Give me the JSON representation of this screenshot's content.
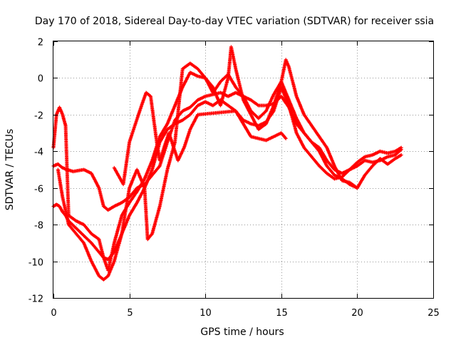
{
  "chart_data": {
    "type": "scatter",
    "title": "Day 170 of 2018, Sidereal Day-to-day VTEC variation (SDTVAR) for receiver ssia",
    "xlabel": "GPS time / hours",
    "ylabel": "SDTVAR / TECUs",
    "xlim": [
      0,
      25
    ],
    "ylim": [
      -12,
      2
    ],
    "xticks": [
      0,
      5,
      10,
      15,
      20,
      25
    ],
    "yticks": [
      -12,
      -10,
      -8,
      -6,
      -4,
      -2,
      0,
      2
    ],
    "xtick_labels": [
      "0",
      "5",
      "10",
      "15",
      "20",
      "25"
    ],
    "ytick_labels": [
      "-12",
      "-10",
      "-8",
      "-6",
      "-4",
      "-2",
      "0",
      "2"
    ],
    "grid": true,
    "grid_style": "dotted",
    "marker": "+",
    "color": "#ff0000",
    "series": [
      {
        "x": [
          0.0,
          0.3,
          0.6,
          0.9,
          1.3,
          2.0,
          2.5,
          3.0,
          3.3,
          3.6,
          4.0,
          4.5,
          5.0,
          5.5,
          6.0,
          6.5,
          7.0,
          7.5,
          8.0,
          8.5,
          9.0,
          9.5,
          10.0,
          10.5,
          11.0,
          11.5,
          12.0,
          12.5,
          13.0,
          13.5,
          14.0,
          14.5,
          15.0,
          15.5,
          16.0,
          16.5,
          17.0,
          17.5,
          18.0,
          18.5,
          19.0,
          19.5,
          20.0,
          20.5,
          21.0,
          21.5,
          22.0,
          22.5,
          22.9
        ],
        "y": [
          -4.8,
          -4.7,
          -4.9,
          -5.0,
          -5.1,
          -5.0,
          -5.2,
          -6.0,
          -7.0,
          -7.2,
          -7.0,
          -6.8,
          -6.5,
          -6.0,
          -5.8,
          -5.3,
          -4.8,
          -3.5,
          -2.3,
          -1.8,
          -1.6,
          -1.2,
          -1.0,
          -0.9,
          -0.8,
          -1.0,
          -0.8,
          -1.0,
          -1.2,
          -1.5,
          -1.5,
          -1.4,
          -1.0,
          -1.6,
          -2.5,
          -3.0,
          -3.5,
          -3.8,
          -4.5,
          -5.0,
          -5.2,
          -5.0,
          -4.8,
          -4.5,
          -4.6,
          -4.5,
          -4.3,
          -4.2,
          -3.9
        ]
      },
      {
        "x": [
          0.0,
          0.2,
          0.4,
          0.6,
          0.8,
          1.0,
          1.5,
          2.0,
          2.5,
          3.0,
          3.3,
          3.6,
          4.0,
          4.5,
          5.0,
          5.5,
          6.0,
          6.5,
          7.0,
          7.5,
          8.0,
          8.5,
          9.0,
          9.5,
          10.0,
          10.5,
          11.0,
          11.5,
          12.0,
          12.5,
          13.0,
          13.5,
          14.0,
          14.5,
          15.0,
          15.5,
          16.0,
          16.5,
          17.0,
          17.5,
          18.0,
          18.5,
          19.0,
          19.5,
          20.0,
          20.5,
          21.0,
          21.5,
          22.0,
          22.5,
          22.9
        ],
        "y": [
          -7.0,
          -6.9,
          -7.0,
          -7.3,
          -7.5,
          -7.8,
          -8.2,
          -8.6,
          -9.0,
          -9.5,
          -9.8,
          -9.9,
          -9.5,
          -8.5,
          -7.5,
          -6.8,
          -6.0,
          -5.0,
          -3.5,
          -2.8,
          -2.5,
          -2.3,
          -2.0,
          -1.5,
          -1.3,
          -1.5,
          -1.2,
          -1.5,
          -1.8,
          -2.3,
          -2.5,
          -2.6,
          -2.4,
          -1.8,
          -0.5,
          -1.5,
          -3.0,
          -3.8,
          -4.3,
          -4.8,
          -5.2,
          -5.5,
          -5.4,
          -5.0,
          -4.6,
          -4.3,
          -4.2,
          -4.0,
          -4.1,
          -4.0,
          -3.8
        ]
      },
      {
        "x": [
          0.0,
          0.2,
          0.4,
          0.6,
          0.8,
          1.0,
          1.5,
          2.0,
          2.5,
          3.0,
          3.3,
          3.6,
          4.0,
          4.5,
          5.0,
          5.5,
          6.0,
          6.5,
          7.0,
          7.5,
          8.0,
          8.5,
          9.0,
          9.5,
          10.0,
          10.5,
          11.0,
          11.5,
          12.0,
          12.5,
          13.0,
          13.5,
          14.0,
          14.5,
          15.0,
          15.5,
          16.0,
          16.5,
          17.0,
          17.5,
          18.0,
          18.5,
          19.0,
          19.5,
          20.0,
          20.5,
          21.0,
          21.5,
          22.0,
          22.5,
          22.9
        ],
        "y": [
          -3.8,
          -2.0,
          -1.6,
          -2.0,
          -2.6,
          -7.5,
          -7.8,
          -8.0,
          -8.5,
          -8.8,
          -9.8,
          -10.5,
          -9.0,
          -7.5,
          -6.8,
          -6.2,
          -5.5,
          -4.5,
          -3.2,
          -2.5,
          -1.5,
          -0.5,
          0.3,
          0.1,
          0.0,
          -0.8,
          -0.2,
          0.2,
          -0.5,
          -1.0,
          -1.8,
          -2.2,
          -1.8,
          -0.9,
          -0.2,
          -1.2,
          -2.2,
          -3.0,
          -3.5,
          -4.0,
          -4.8,
          -5.3,
          -5.5,
          -5.8,
          -6.0,
          -5.3,
          -4.8,
          -4.4,
          -4.7,
          -4.4,
          -4.2
        ]
      },
      {
        "x": [
          0.3,
          0.6,
          1.0,
          1.5,
          2.0,
          2.5,
          3.0,
          3.3,
          3.6,
          4.0,
          4.5,
          5.0,
          5.5,
          6.0,
          6.2,
          6.5,
          7.0,
          7.5,
          8.0,
          8.5,
          9.0,
          9.5,
          10.0,
          10.5,
          11.0,
          11.5,
          11.7,
          12.0,
          12.5,
          13.0,
          13.5,
          14.0,
          14.5,
          15.0,
          15.3,
          15.5,
          16.0,
          16.5,
          17.0,
          17.5,
          18.0,
          18.5,
          19.0,
          19.5,
          20.0
        ],
        "y": [
          -5.0,
          -6.5,
          -8.0,
          -8.5,
          -9.0,
          -10.0,
          -10.8,
          -11.0,
          -10.8,
          -10.0,
          -8.5,
          -6.0,
          -5.0,
          -6.0,
          -8.8,
          -8.5,
          -7.0,
          -5.0,
          -3.5,
          0.5,
          0.8,
          0.5,
          0.0,
          -0.5,
          -1.5,
          0.0,
          1.7,
          0.5,
          -1.2,
          -2.0,
          -2.8,
          -2.5,
          -1.5,
          -0.2,
          1.0,
          0.6,
          -1.0,
          -2.0,
          -2.6,
          -3.2,
          -3.8,
          -4.8,
          -5.6,
          -5.7,
          -6.0
        ]
      },
      {
        "x": [
          4.0,
          4.6,
          5.0,
          5.4,
          5.8,
          6.1,
          6.4,
          6.8,
          7.0,
          7.6,
          8.2,
          8.6,
          9.0,
          9.5,
          12.0,
          12.5,
          13.0,
          14.0,
          15.0,
          15.3
        ],
        "y": [
          -4.9,
          -5.8,
          -3.5,
          -2.5,
          -1.5,
          -0.8,
          -1.0,
          -3.5,
          -4.5,
          -3.0,
          -4.5,
          -3.8,
          -2.8,
          -2.0,
          -1.8,
          -2.5,
          -3.2,
          -3.4,
          -3.0,
          -3.3
        ]
      }
    ]
  }
}
